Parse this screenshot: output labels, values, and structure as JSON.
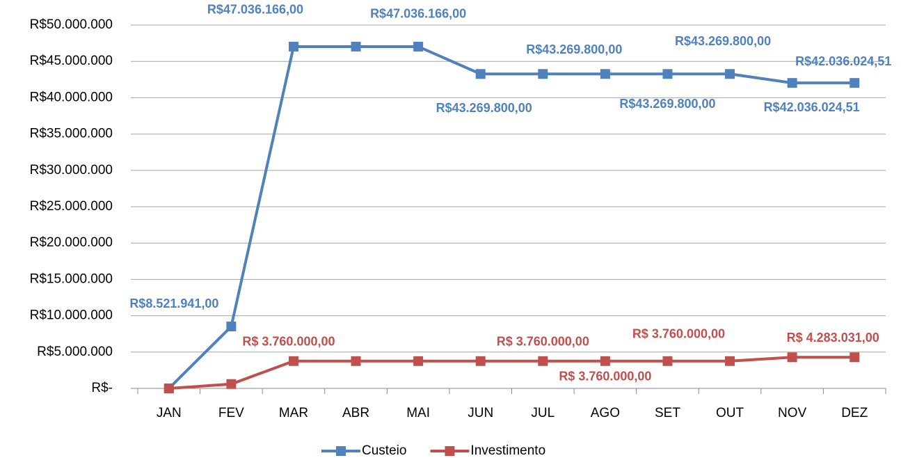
{
  "chart_data": {
    "type": "line",
    "categories": [
      "JAN",
      "FEV",
      "MAR",
      "ABR",
      "MAI",
      "JUN",
      "JUL",
      "AGO",
      "SET",
      "OUT",
      "NOV",
      "DEZ"
    ],
    "series": [
      {
        "name": "Custeio",
        "color": "#4f81bd",
        "values": [
          0,
          8521941,
          47036166,
          47036166,
          47036166,
          43269800,
          43269800,
          43269800,
          43269800,
          43269800,
          42036024.51,
          42036024.51
        ],
        "value_labels": [
          null,
          "R$8.521.941,00",
          "R$47.036.166,00",
          null,
          "R$47.036.166,00",
          "R$43.269.800,00",
          "R$43.269.800,00",
          null,
          "R$43.269.800,00",
          "R$43.269.800,00",
          "R$42.036.024,51",
          "R$42.036.024,51"
        ]
      },
      {
        "name": "Investimento",
        "color": "#c0504d",
        "values": [
          0,
          600000,
          3760000,
          3760000,
          3760000,
          3760000,
          3760000,
          3760000,
          3760000,
          3760000,
          4283031,
          4283031
        ],
        "value_labels": [
          null,
          null,
          "R$ 3.760.000,00",
          null,
          null,
          null,
          "R$ 3.760.000,00",
          "R$ 3.760.000,00",
          "R$ 3.760.000,00",
          null,
          null,
          "R$ 4.283.031,00"
        ]
      }
    ],
    "ylim": [
      0,
      50000000
    ],
    "yticks": [
      {
        "value": 0,
        "label": "R$-"
      },
      {
        "value": 5000000,
        "label": "R$5.000.000"
      },
      {
        "value": 10000000,
        "label": "R$10.000.000"
      },
      {
        "value": 15000000,
        "label": "R$15.000.000"
      },
      {
        "value": 20000000,
        "label": "R$20.000.000"
      },
      {
        "value": 25000000,
        "label": "R$25.000.000"
      },
      {
        "value": 30000000,
        "label": "R$30.000.000"
      },
      {
        "value": 35000000,
        "label": "R$35.000.000"
      },
      {
        "value": 40000000,
        "label": "R$40.000.000"
      },
      {
        "value": 45000000,
        "label": "R$45.000.000"
      },
      {
        "value": 50000000,
        "label": "R$50.000.000"
      }
    ],
    "grid": true,
    "legend": "bottom"
  }
}
